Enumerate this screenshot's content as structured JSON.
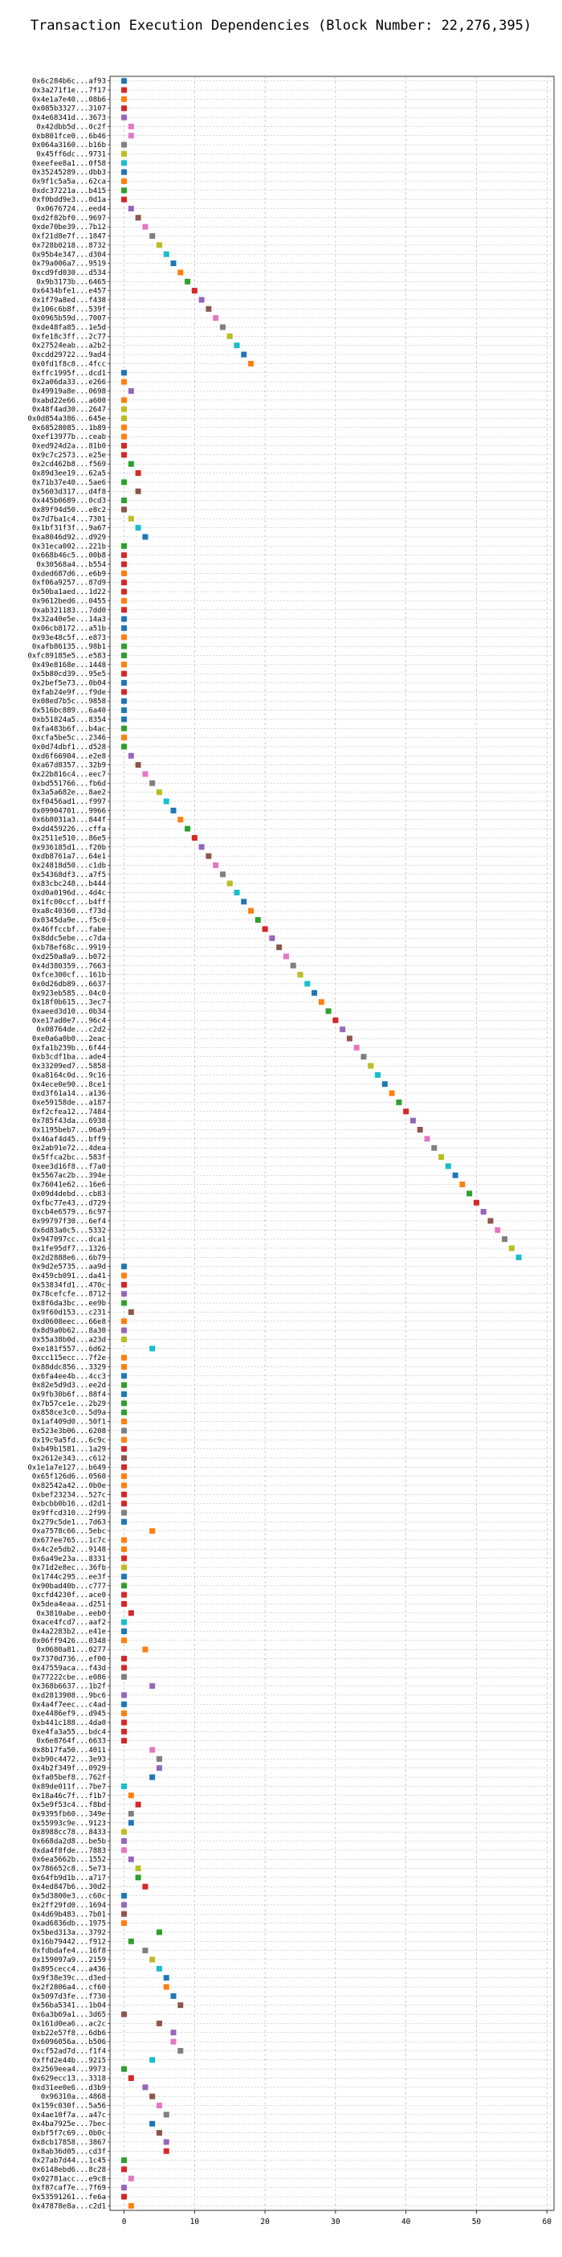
{
  "chart_data": {
    "type": "scatter",
    "title": "Transaction Execution Dependencies (Block Number: 22,276,395)",
    "xlabel": "",
    "ylabel": "",
    "xlim": [
      -2,
      61
    ],
    "xticks": [
      0,
      10,
      20,
      30,
      40,
      50,
      60
    ],
    "grid": true,
    "legend": "none",
    "marker": "square",
    "palette": [
      "#1f77b4",
      "#ff7f0e",
      "#2ca02c",
      "#d62728",
      "#9467bd",
      "#8c564b",
      "#e377c2",
      "#7f7f7f",
      "#bcbd22",
      "#17becf"
    ],
    "categories": [
      "0x6c284b6c...af93",
      "0x3a271f1e...7f17",
      "0x4e1a7e40...08b6",
      "0x085b3327...3107",
      "0x4e68341d...3673",
      "0x42dbb5d...0c2f",
      "0xb801fce0...6b46",
      "0x064a3160...b16b",
      "0x45ff6dc...9731",
      "0xeefee8a1...0f58",
      "0x35245289...dbb3",
      "0x9f1c5a5a...62ca",
      "0xdc37221a...b415",
      "0xf0bdd9e3...0d1a",
      "0x0676724...eed4",
      "0xd2f82bf0...9697",
      "0xde70be39...7b12",
      "0xf21d8e7f...1847",
      "0x728b0218...8732",
      "0x95b4e347...d304",
      "0x79a006a7...9519",
      "0xcd9fd030...d534",
      "0x9b3173b...6465",
      "0x6434bfe1...e457",
      "0x1f79a8ed...f438",
      "0x106c6b8f...539f",
      "0x0965b59d...7007",
      "0xde48fa85...1e5d",
      "0xfe18c3ff...2c77",
      "0x27524eab...a2b2",
      "0xcdd29722...9ad4",
      "0x0fd1f8c8...4fcc",
      "0xffc1995f...dcd1",
      "0x2a06da33...e266",
      "0x49919a8e...0698",
      "0xabd22e66...a600",
      "0x48f4ad30...2647",
      "0x0d854a386...645e",
      "0x68528085...1b89",
      "0xef13977b...ceab",
      "0xed924d2a...81b0",
      "0x9c7c2573...e25e",
      "0x2cd462b8...f569",
      "0x89d3ee19...62a5",
      "0x71b37e40...5ae6",
      "0x5603d317...d4f8",
      "0x445b0689...0cd3",
      "0x89f94d50...e8c2",
      "0x7d7ba1c4...7301",
      "0x1bf31f3f...9a67",
      "0xa8046d92...d929",
      "0x31eca002...221b",
      "0x668b46c5...00b8",
      "0x30568a4...b554",
      "0xded687d6...e6b9",
      "0xf06a9257...87d9",
      "0x50ba1aed...1d22",
      "0x9612bed6...0455",
      "0xab321183...7dd0",
      "0x32a40e5e...14a3",
      "0x06cb8172...a51b",
      "0x93e48c5f...e873",
      "0xafb86135...98b1",
      "0xfc89185e5...e583",
      "0x49e8168e...1448",
      "0x5b80cd39...95e5",
      "0x2bef5e73...0b04",
      "0xfab24e9f...f9de",
      "0x08ed7b5c...9858",
      "0x516bc889...6a40",
      "0xb51824a5...8354",
      "0xfa483b6f...b4ac",
      "0xcfa5be5c...2346",
      "0x0d74dbf1...d528",
      "0xd6f66904...e2e8",
      "0xa67d8357...32b9",
      "0x22b816c4...eec7",
      "0xbd551766...fb6d",
      "0x3a5a682e...8ae2",
      "0xf0456ad1...f997",
      "0x09904701...9966",
      "0x6b8031a3...844f",
      "0xdd459226...cffa",
      "0x2511e510...86e5",
      "0x936185d1...f20b",
      "0xdb8761a7...64e1",
      "0x24818d50...c1db",
      "0x54368df3...a7f5",
      "0x83cbc248...b444",
      "0xd0a0196d...4d4c",
      "0x1fc00ccf...b4ff",
      "0xa8c40360...f73d",
      "0x0345da9e...f5c0",
      "0x46ffccbf...fabe",
      "0x8ddc5ebe...c7da",
      "0xb78ef68c...9919",
      "0xd250a8a9...b072",
      "0x4d380359...7663",
      "0xfce300cf...161b",
      "0x0d26db89...6637",
      "0x923eb585...04c0",
      "0x18f0b615...3ec7",
      "0xaeed3d10...0b34",
      "0xe17ad0e7...96c4",
      "0x08764de...c2d2",
      "0xe0a6a0b0...2eac",
      "0xfa1b239b...6f44",
      "0xb3cdf1ba...ade4",
      "0x33209ed7...5858",
      "0xa8164c0d...9c16",
      "0x4ece0e90...8ce1",
      "0xd3f61a14...a136",
      "0xe59158de...a187",
      "0xf2cfea12...7484",
      "0x785f43da...6938",
      "0x1195beb7...06a9",
      "0x46af4d45...bff9",
      "0x2ab91e72...4dea",
      "0x5ffca2bc...583f",
      "0xee3d16f8...f7a0",
      "0x5567ac2b...394e",
      "0x76041e62...16e6",
      "0x09d4debd...cb83",
      "0xfbc77e43...d729",
      "0xcb4e6579...6c97",
      "0x99797f30...6ef4",
      "0x6d83a0c5...5332",
      "0x947097cc...dca1",
      "0x1fe95df7...1326",
      "0x2d2888e6...6b79",
      "0x9d2e5735...aa9d",
      "0x459cb091...da41",
      "0x53834fd1...470c",
      "0x78cefcfe...8712",
      "0x8f6da3bc...ee9b",
      "0x9f60d153...c231",
      "0xd0608eec...66e8",
      "0x8d9a0b62...8a30",
      "0x55a38b0d...a23d",
      "0xe181f557...6d62",
      "0xcc115ecc...7f2e",
      "0x88ddc856...3329",
      "0x6fa4ee4b...4cc3",
      "0x82e5d9d3...ee2d",
      "0x9fb30b6f...88f4",
      "0x7b57ce1e...2b29",
      "0x858ce3c0...5d9a",
      "0x1af409d0...50f1",
      "0x523e3b06...6208",
      "0x19c9a5fd...6c9c",
      "0xb49b1581...1a29",
      "0x2612e343...c612",
      "0x1e1a7e127...b649",
      "0x65f126d6...0560",
      "0x82542a42...0b0e",
      "0xbef23234...527c",
      "0xbcbb0b16...d2d1",
      "0x9ffcd310...2f99",
      "0x279c5de1...7d63",
      "0xa7578c66...5ebc",
      "0x677ee765...1c7c",
      "0x4c2e5db2...9148",
      "0x6a49e23a...8331",
      "0x71d2e8ec...36fb",
      "0x1744c295...ee3f",
      "0x90bad40b...c777",
      "0xcfd4230f...ace0",
      "0x5dea4eaa...d251",
      "0x3810abe...eeb0",
      "0xace4fcd7...aaf2",
      "0x4a2283b2...e41e",
      "0x06ff9426...0348",
      "0x0680a81...0277",
      "0x7370d736...ef00",
      "0x47559aca...f43d",
      "0x77222cbe...e086",
      "0x368b6637...1b2f",
      "0xd2813908...9bc6",
      "0x4a4f7eec...c4ad",
      "0xe4486ef9...d945",
      "0xb441c188...4da0",
      "0xe4fa3a55...bdc4",
      "0x6e8764f...6633",
      "0x8b17fa50...4011",
      "0xb90c4472...3e93",
      "0x4b2f349f...0929",
      "0xfa05bef8...762f",
      "0x89de011f...7be7",
      "0x18a46c7f...f1b7",
      "0x5e9f53c4...f8bd",
      "0x9395fb60...349e",
      "0x55993c9e...9123",
      "0x8988cc78...8433",
      "0x668da2d8...be5b",
      "0xda4f8fde...7883",
      "0x6ea5662b...1552",
      "0x786652c8...5e73",
      "0x64fb9d1b...a717",
      "0x4ed847b6...30d2",
      "0x5d3800e3...c60c",
      "0x2ff29fd0...1694",
      "0x4d69b483...7b01",
      "0xad6836db...1975",
      "0x5bed313a...3792",
      "0x16b79442...f912",
      "0xfdbdafe4...16f8",
      "0x159097a9...2159",
      "0x895cecc4...a436",
      "0x9f38e39c...d3ed",
      "0x2f2806a4...cf60",
      "0x5097d3fe...f730",
      "0x56ba5341...1b04",
      "0x6a3b69a1...3d65",
      "0x161d0ea6...ac2c",
      "0xb22e57f8...6db6",
      "0x6096056a...b506",
      "0xcf52ad7d...f1f4",
      "0xffd2e44b...9215",
      "0x2569eea4...9973",
      "0x629ecc13...3318",
      "0xd31ee0e6...d3b9",
      "0x96310a...4868",
      "0x159c030f...5a56",
      "0x4ae10f7a...a47c",
      "0x4ba7925e...7bec",
      "0xbf5f7c69...0b0c",
      "0x8cb17858...3867",
      "0x8ab36d05...cd3f",
      "0x27ab7d44...1c45",
      "0x6148ebd6...8c28",
      "0x02781acc...e9c8",
      "0xf87caf7e...7f69",
      "0x53591261...fe6a",
      "0x47878e8a...c2d1"
    ],
    "x": [
      0,
      0,
      0,
      0,
      0,
      1,
      1,
      0,
      0,
      0,
      0,
      0,
      0,
      0,
      1,
      2,
      3,
      4,
      5,
      6,
      7,
      8,
      9,
      10,
      11,
      12,
      13,
      14,
      15,
      16,
      17,
      18,
      0,
      0,
      1,
      0,
      0,
      0,
      0,
      0,
      0,
      0,
      1,
      2,
      0,
      2,
      0,
      0,
      1,
      2,
      3,
      0,
      0,
      0,
      0,
      0,
      0,
      0,
      0,
      0,
      0,
      0,
      0,
      0,
      0,
      0,
      0,
      0,
      0,
      0,
      0,
      0,
      0,
      0,
      1,
      2,
      3,
      4,
      5,
      6,
      7,
      8,
      9,
      10,
      11,
      12,
      13,
      14,
      15,
      16,
      17,
      18,
      19,
      20,
      21,
      22,
      23,
      24,
      25,
      26,
      27,
      28,
      29,
      30,
      31,
      32,
      33,
      34,
      35,
      36,
      37,
      38,
      39,
      40,
      41,
      42,
      43,
      44,
      45,
      46,
      47,
      48,
      49,
      50,
      51,
      52,
      53,
      54,
      55,
      56,
      0,
      0,
      0,
      0,
      0,
      1,
      0,
      0,
      0,
      4,
      0,
      0,
      0,
      0,
      0,
      0,
      0,
      0,
      0,
      0,
      0,
      0,
      0,
      0,
      0,
      0,
      0,
      0,
      0,
      4,
      0,
      0,
      0,
      0,
      0,
      0,
      0,
      0,
      1,
      0,
      0,
      0,
      3,
      0,
      0,
      0,
      4,
      0,
      0,
      0,
      0,
      0,
      0,
      4,
      5,
      5,
      4,
      0,
      1,
      2,
      1,
      1,
      0,
      0,
      0,
      1,
      2,
      2,
      3,
      0,
      0,
      0,
      0,
      5,
      1,
      3,
      4,
      5,
      6,
      6,
      7,
      8,
      0,
      5,
      7,
      7,
      8,
      4,
      0,
      1,
      3,
      4,
      5,
      6,
      4,
      5,
      6,
      6,
      0,
      0,
      1,
      0,
      0,
      1
    ],
    "colors": [
      0,
      3,
      1,
      3,
      4,
      6,
      6,
      7,
      8,
      9,
      0,
      1,
      2,
      3,
      4,
      5,
      6,
      7,
      8,
      9,
      0,
      1,
      2,
      3,
      4,
      5,
      6,
      7,
      8,
      9,
      0,
      1,
      0,
      1,
      4,
      1,
      8,
      8,
      1,
      1,
      3,
      3,
      2,
      3,
      2,
      5,
      2,
      5,
      8,
      9,
      0,
      2,
      3,
      3,
      1,
      3,
      3,
      1,
      3,
      0,
      0,
      1,
      2,
      2,
      1,
      3,
      0,
      3,
      0,
      0,
      0,
      2,
      1,
      2,
      4,
      5,
      6,
      7,
      8,
      9,
      0,
      1,
      2,
      3,
      4,
      5,
      6,
      7,
      8,
      9,
      0,
      1,
      2,
      3,
      4,
      5,
      6,
      7,
      8,
      9,
      0,
      1,
      2,
      3,
      4,
      5,
      6,
      7,
      8,
      9,
      0,
      1,
      2,
      3,
      4,
      5,
      6,
      7,
      8,
      9,
      0,
      1,
      2,
      3,
      4,
      5,
      6,
      7,
      8,
      9,
      0,
      1,
      3,
      4,
      2,
      5,
      1,
      4,
      8,
      9,
      1,
      1,
      0,
      2,
      0,
      2,
      2,
      1,
      7,
      1,
      3,
      5,
      3,
      1,
      1,
      3,
      3,
      7,
      0,
      1,
      1,
      1,
      3,
      8,
      0,
      2,
      3,
      3,
      3,
      9,
      0,
      1,
      1,
      3,
      3,
      7,
      4,
      4,
      0,
      1,
      3,
      3,
      3,
      6,
      7,
      4,
      0,
      9,
      1,
      3,
      7,
      0,
      8,
      4,
      6,
      4,
      8,
      2,
      3,
      0,
      4,
      5,
      1,
      2,
      2,
      7,
      8,
      9,
      0,
      1,
      0,
      5,
      5,
      5,
      4,
      6,
      7,
      9,
      2,
      3,
      4,
      5,
      6,
      7,
      0,
      5,
      4,
      3,
      2,
      3,
      6,
      4,
      3,
      1,
      6
    ]
  }
}
